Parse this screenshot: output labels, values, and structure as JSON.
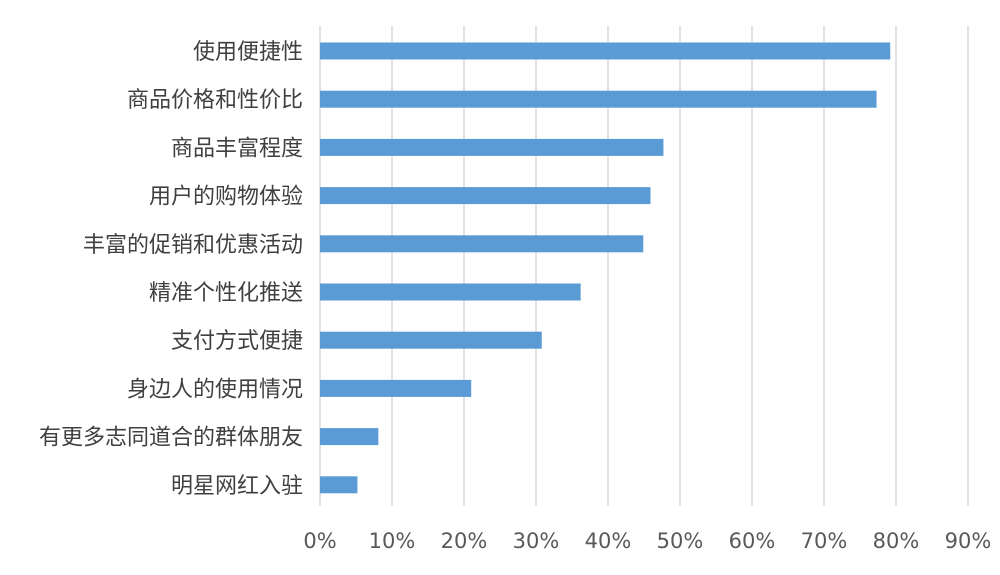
{
  "chart_data": {
    "type": "bar",
    "orientation": "horizontal",
    "title": "",
    "xlabel": "",
    "ylabel": "",
    "categories": [
      "使用便捷性",
      "商品价格和性价比",
      "商品丰富程度",
      "用户的购物体验",
      "丰富的促销和优惠活动",
      "精准个性化推送",
      "支付方式便捷",
      "身边人的使用情况",
      "有更多志同道合的群体朋友",
      "明星网红入驻"
    ],
    "values": [
      79.2,
      77.3,
      47.7,
      45.9,
      44.9,
      36.2,
      30.8,
      21.0,
      8.1,
      5.2
    ],
    "xlim": [
      0,
      90
    ],
    "xticks": [
      "0%",
      "10%",
      "20%",
      "30%",
      "40%",
      "50%",
      "60%",
      "70%",
      "80%",
      "90%"
    ],
    "value_format": "percent",
    "grid": "vertical",
    "legend": "none",
    "bar_color": "#5b9bd5",
    "grid_color": "#d9d9d9"
  }
}
